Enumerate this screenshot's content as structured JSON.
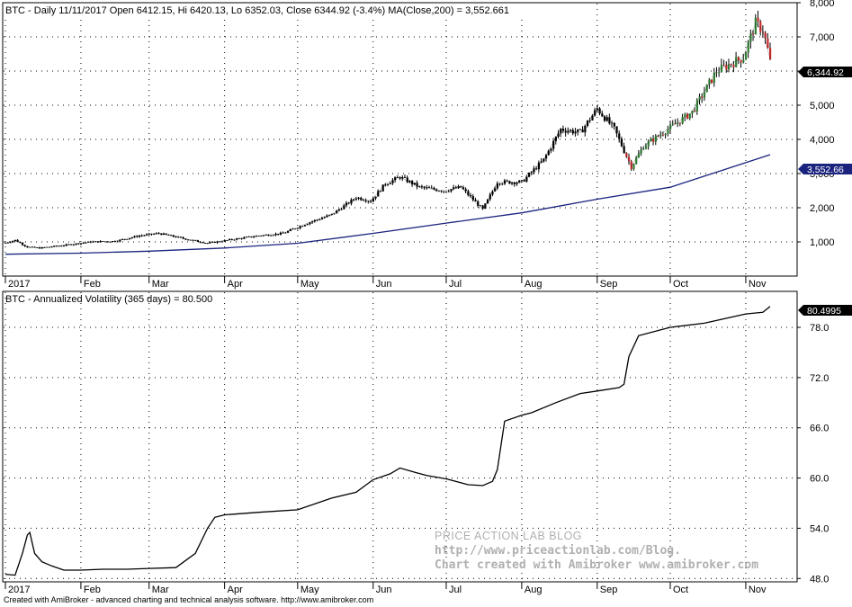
{
  "footer_text": "Created with AmiBroker - advanced charting and technical analysis software. http://www.amibroker.com",
  "watermark": [
    "PRICE ACTION LAB BLOG",
    "http://www.priceactionlab.com/Blog.",
    "Chart created with Amibroker www.amibroker.com"
  ],
  "colors": {
    "grid": "#000000",
    "price": "#000000",
    "up_candle": "#2e7d32",
    "down_candle": "#c62828",
    "ma_line": "#1a237e",
    "volatility_line": "#000000",
    "last_price_badge": "#000000",
    "ma_badge": "#1a237e",
    "watermark": "#b0b0b0"
  },
  "x_months": [
    "2017",
    "Feb",
    "Mar",
    "Apr",
    "May",
    "Jun",
    "Jul",
    "Aug",
    "Sep",
    "Oct",
    "Nov"
  ],
  "chart_data": [
    {
      "type": "line",
      "title": "BTC - Daily 11/11/2017 Open 6412.15, Hi 6420.13, Lo 6352.03, Close 6344.92 (-3.4%) MA(Close,200) = 3,552.661",
      "y_ticks": [
        "1,000",
        "2,000",
        "3,000",
        "4,000",
        "5,000",
        "6,000",
        "7,000",
        "8,000"
      ],
      "ylim": [
        0,
        8000
      ],
      "last_value_label": "6,344.92",
      "ma_value_label": "3,552.66",
      "x": [
        "2017-01-01",
        "2017-01-05",
        "2017-01-10",
        "2017-01-15",
        "2017-01-25",
        "2017-02-05",
        "2017-02-15",
        "2017-02-25",
        "2017-03-05",
        "2017-03-15",
        "2017-03-25",
        "2017-04-05",
        "2017-04-15",
        "2017-04-25",
        "2017-05-05",
        "2017-05-15",
        "2017-05-25",
        "2017-05-31",
        "2017-06-06",
        "2017-06-12",
        "2017-06-20",
        "2017-06-30",
        "2017-07-07",
        "2017-07-16",
        "2017-07-22",
        "2017-08-01",
        "2017-08-10",
        "2017-08-17",
        "2017-08-25",
        "2017-09-01",
        "2017-09-08",
        "2017-09-15",
        "2017-09-20",
        "2017-09-30",
        "2017-10-10",
        "2017-10-20",
        "2017-10-31",
        "2017-11-05",
        "2017-11-08",
        "2017-11-11"
      ],
      "series": [
        {
          "name": "Close",
          "values": [
            970,
            1050,
            850,
            820,
            900,
            1000,
            1020,
            1180,
            1250,
            1100,
            960,
            1080,
            1180,
            1250,
            1550,
            1800,
            2300,
            2200,
            2700,
            2900,
            2600,
            2500,
            2600,
            1950,
            2750,
            2750,
            3400,
            4300,
            4200,
            4900,
            4300,
            3200,
            3800,
            4300,
            4800,
            6000,
            6400,
            7400,
            7200,
            6345
          ]
        },
        {
          "name": "MA(Close,200)",
          "x": [
            "2017-01-01",
            "2017-02-01",
            "2017-03-01",
            "2017-04-01",
            "2017-05-01",
            "2017-06-01",
            "2017-07-01",
            "2017-08-01",
            "2017-09-01",
            "2017-10-01",
            "2017-11-11"
          ],
          "values": [
            640,
            670,
            730,
            820,
            960,
            1250,
            1550,
            1850,
            2250,
            2600,
            3553
          ]
        }
      ]
    },
    {
      "type": "line",
      "title": "BTC - Annualized Volatility (365 days) = 80.500",
      "y_ticks": [
        "48.0",
        "54.0",
        "60.0",
        "66.0",
        "72.0",
        "78.0"
      ],
      "ylim": [
        47.6,
        82.3
      ],
      "last_value_label": "80.4995",
      "x": [
        "2017-01-01",
        "2017-01-05",
        "2017-01-08",
        "2017-01-10",
        "2017-01-11",
        "2017-01-13",
        "2017-01-16",
        "2017-01-20",
        "2017-01-25",
        "2017-02-01",
        "2017-02-10",
        "2017-02-20",
        "2017-03-01",
        "2017-03-12",
        "2017-03-20",
        "2017-03-25",
        "2017-03-28",
        "2017-04-01",
        "2017-04-15",
        "2017-05-01",
        "2017-05-15",
        "2017-05-25",
        "2017-06-01",
        "2017-06-08",
        "2017-06-12",
        "2017-06-18",
        "2017-06-23",
        "2017-07-01",
        "2017-07-10",
        "2017-07-16",
        "2017-07-20",
        "2017-07-22",
        "2017-07-25",
        "2017-08-01",
        "2017-08-05",
        "2017-08-15",
        "2017-08-25",
        "2017-09-01",
        "2017-09-10",
        "2017-09-12",
        "2017-09-14",
        "2017-09-18",
        "2017-10-01",
        "2017-10-15",
        "2017-11-01",
        "2017-11-08",
        "2017-11-11"
      ],
      "series": [
        {
          "name": "Volatility",
          "values": [
            48.5,
            48.4,
            51.0,
            53.2,
            53.5,
            51.0,
            50.0,
            49.5,
            49.0,
            49.0,
            49.1,
            49.1,
            49.2,
            49.3,
            51.0,
            54.0,
            55.3,
            55.6,
            55.9,
            56.2,
            57.6,
            58.3,
            59.8,
            60.5,
            61.2,
            60.7,
            60.3,
            59.9,
            59.2,
            59.1,
            59.6,
            61.0,
            66.8,
            67.5,
            67.8,
            69.0,
            70.1,
            70.4,
            70.8,
            71.2,
            74.5,
            77.0,
            78.0,
            78.5,
            79.6,
            79.8,
            80.5
          ]
        }
      ]
    }
  ]
}
